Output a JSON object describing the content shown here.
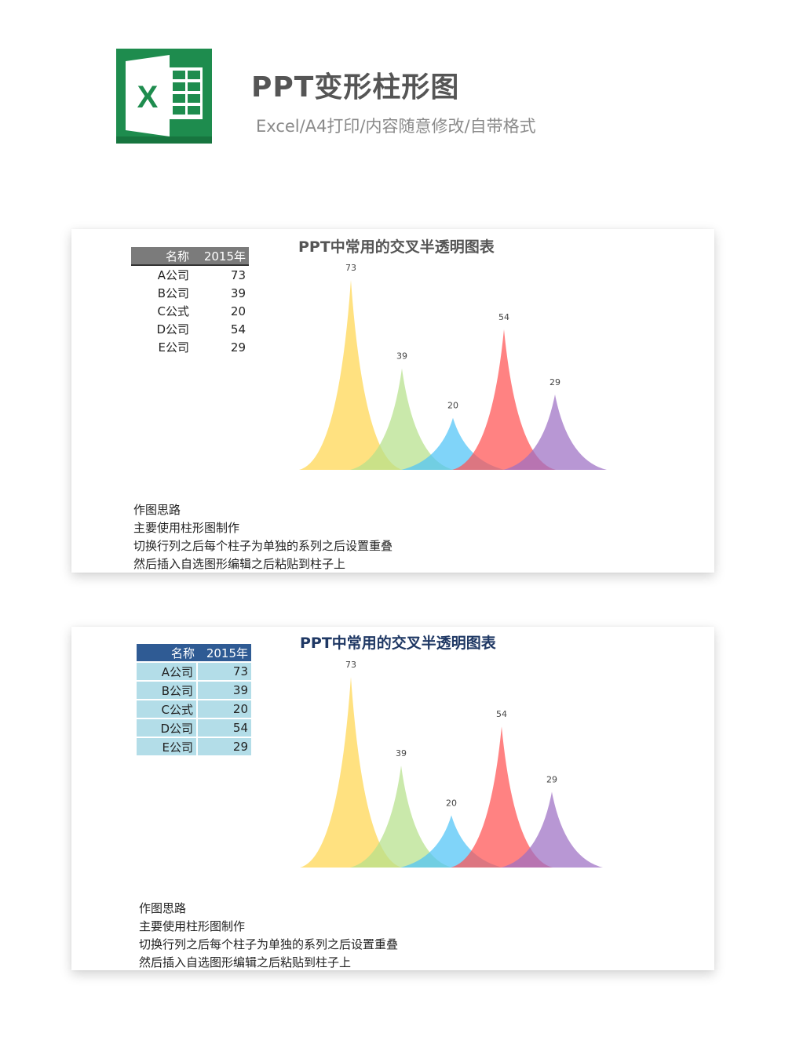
{
  "header": {
    "logo_letter": "X",
    "title": "PPT变形柱形图",
    "subtitle": "Excel/A4打印/内容随意修改/自带格式"
  },
  "table": {
    "col_name": "名称",
    "col_year": "2015年",
    "rows": [
      {
        "name": "A公司",
        "value": "73"
      },
      {
        "name": "B公司",
        "value": "39"
      },
      {
        "name": "C公式",
        "value": "20"
      },
      {
        "name": "D公司",
        "value": "54"
      },
      {
        "name": "E公司",
        "value": "29"
      }
    ]
  },
  "notes": {
    "heading": "作图思路",
    "lines": [
      "主要使用柱形图制作",
      "切换行列之后每个柱子为单独的系列之后设置重叠",
      "然后插入自选图形编辑之后粘贴到柱子上"
    ]
  },
  "colors": {
    "logo_green": "#1e8c4e",
    "header_gray": "#7b7b7b",
    "header_blue": "#2f5b94",
    "row_blue": "#b3dde8",
    "title_blue": "#1f3864"
  },
  "chart_data": [
    {
      "type": "bar",
      "title": "PPT中常用的交叉半透明图表",
      "categories": [
        "A公司",
        "B公司",
        "C公式",
        "D公司",
        "E公司"
      ],
      "values": [
        73,
        39,
        20,
        54,
        29
      ],
      "series_colors": [
        "#ffd54f",
        "#b5e08a",
        "#4fc3f7",
        "#ff5252",
        "#9c6fc4"
      ],
      "ylim": [
        0,
        73
      ],
      "grid": false,
      "legend": "none",
      "data_labels": true
    },
    {
      "type": "bar",
      "title": "PPT中常用的交叉半透明图表",
      "categories": [
        "A公司",
        "B公司",
        "C公式",
        "D公司",
        "E公司"
      ],
      "values": [
        73,
        39,
        20,
        54,
        29
      ],
      "series_colors": [
        "#ffd54f",
        "#b5e08a",
        "#4fc3f7",
        "#ff5252",
        "#9c6fc4"
      ],
      "ylim": [
        0,
        73
      ],
      "grid": false,
      "legend": "none",
      "data_labels": true
    }
  ]
}
